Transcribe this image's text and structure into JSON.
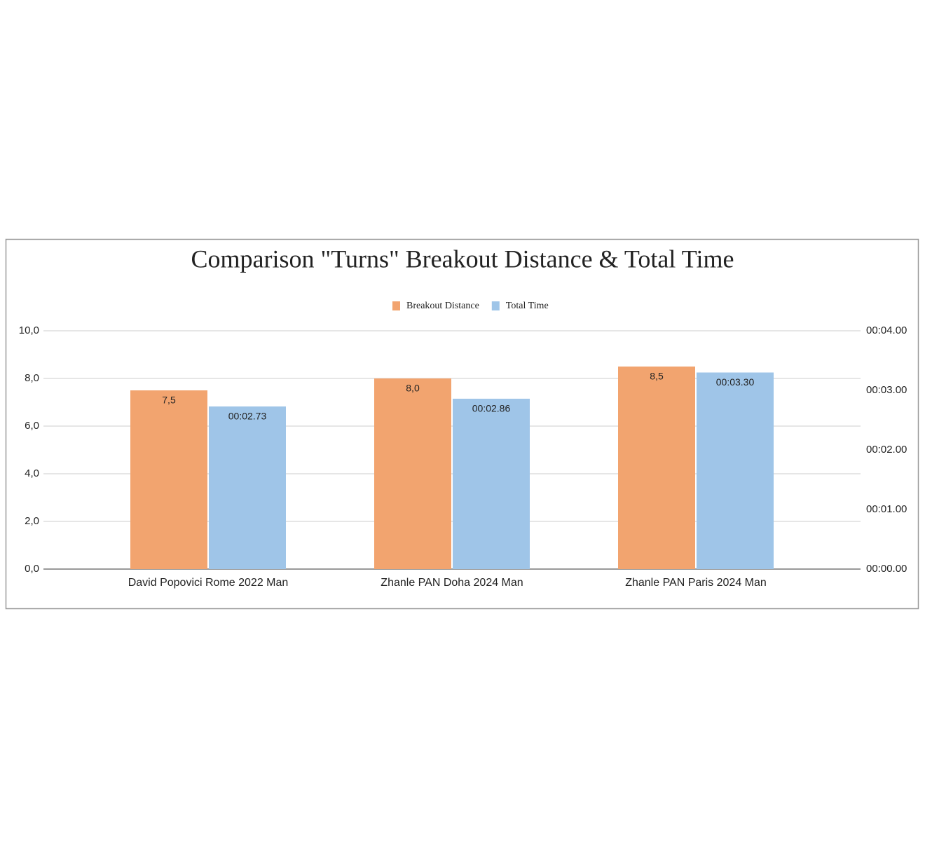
{
  "chart_data": {
    "type": "bar",
    "title": "Comparison \"Turns\" Breakout Distance & Total Time",
    "categories": [
      "David Popovici Rome 2022 Man",
      "Zhanle PAN Doha 2024 Man",
      "Zhanle PAN Paris 2024 Man"
    ],
    "series": [
      {
        "name": "Breakout Distance",
        "color": "#f2a46f",
        "values": [
          7.5,
          8.0,
          8.5
        ],
        "value_labels": [
          "7,5",
          "8,0",
          "8,5"
        ]
      },
      {
        "name": "Total Time",
        "color": "#9fc5e8",
        "axis": "y2",
        "values": [
          2.73,
          2.86,
          3.3
        ],
        "value_labels": [
          "00:02.73",
          "00:02.86",
          "00:03.30"
        ]
      }
    ],
    "ylim": [
      0,
      10
    ],
    "yticks": [
      {
        "value": 0,
        "label": "0,0"
      },
      {
        "value": 2,
        "label": "2,0"
      },
      {
        "value": 4,
        "label": "4,0"
      },
      {
        "value": 6,
        "label": "6,0"
      },
      {
        "value": 8,
        "label": "8,0"
      },
      {
        "value": 10,
        "label": "10,0"
      }
    ],
    "y2lim": [
      0,
      4
    ],
    "y2ticks": [
      {
        "value": 0,
        "label": "00:00.00"
      },
      {
        "value": 1,
        "label": "00:01.00"
      },
      {
        "value": 2,
        "label": "00:02.00"
      },
      {
        "value": 3,
        "label": "00:03.00"
      },
      {
        "value": 4,
        "label": "00:04.00"
      }
    ],
    "grid": true,
    "legend": "top"
  }
}
